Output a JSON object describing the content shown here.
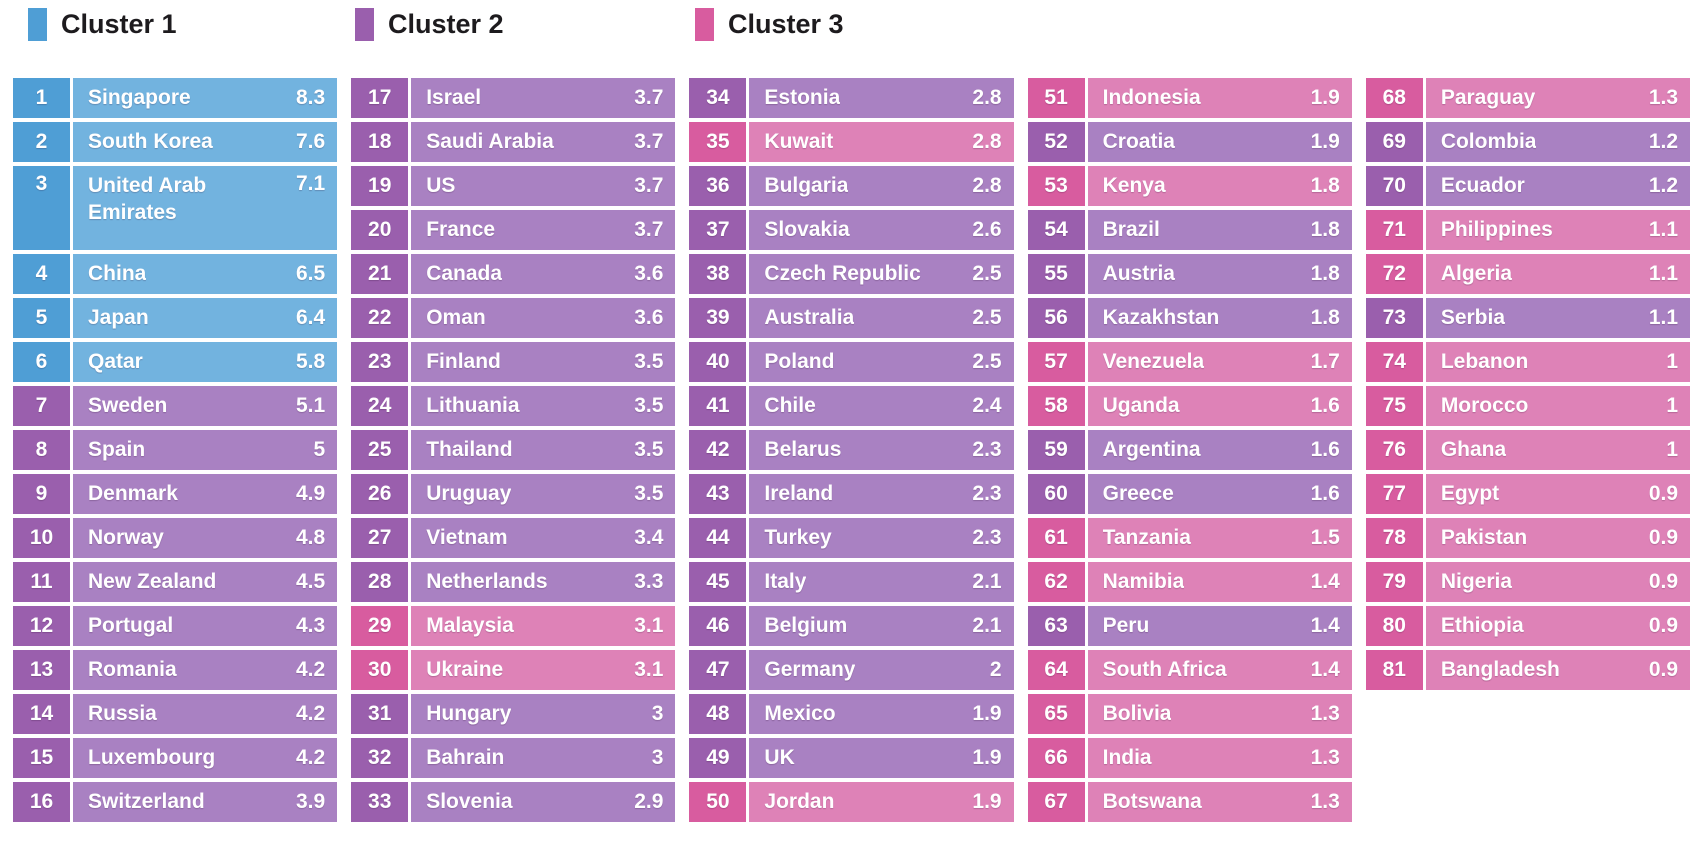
{
  "colors": {
    "cluster1_dark": "#4F9ED5",
    "cluster1_light": "#72B3DF",
    "cluster2_dark": "#9A5FAD",
    "cluster2_light": "#A981C2",
    "cluster3_dark": "#D85C9F",
    "cluster3_light": "#DE82B7",
    "row_text": "#FFFFFF",
    "legend_text": "#1D1B1E"
  },
  "legend": [
    {
      "label": "Cluster 1",
      "cluster": 1
    },
    {
      "label": "Cluster 2",
      "cluster": 2
    },
    {
      "label": "Cluster 3",
      "cluster": 3
    }
  ],
  "chart_data": {
    "type": "table",
    "legend": [
      "Cluster 1",
      "Cluster 2",
      "Cluster 3"
    ],
    "column_breaks": [
      16,
      33,
      50,
      67,
      81
    ],
    "rows": [
      {
        "rank": 1,
        "country": "Singapore",
        "value": 8.3,
        "cluster": 1
      },
      {
        "rank": 2,
        "country": "South Korea",
        "value": 7.6,
        "cluster": 1
      },
      {
        "rank": 3,
        "country": "United Arab Emirates",
        "value": 7.1,
        "cluster": 1
      },
      {
        "rank": 4,
        "country": "China",
        "value": 6.5,
        "cluster": 1
      },
      {
        "rank": 5,
        "country": "Japan",
        "value": 6.4,
        "cluster": 1
      },
      {
        "rank": 6,
        "country": "Qatar",
        "value": 5.8,
        "cluster": 1
      },
      {
        "rank": 7,
        "country": "Sweden",
        "value": 5.1,
        "cluster": 2
      },
      {
        "rank": 8,
        "country": "Spain",
        "value": 5,
        "cluster": 2
      },
      {
        "rank": 9,
        "country": "Denmark",
        "value": 4.9,
        "cluster": 2
      },
      {
        "rank": 10,
        "country": "Norway",
        "value": 4.8,
        "cluster": 2
      },
      {
        "rank": 11,
        "country": "New Zealand",
        "value": 4.5,
        "cluster": 2
      },
      {
        "rank": 12,
        "country": "Portugal",
        "value": 4.3,
        "cluster": 2
      },
      {
        "rank": 13,
        "country": "Romania",
        "value": 4.2,
        "cluster": 2
      },
      {
        "rank": 14,
        "country": "Russia",
        "value": 4.2,
        "cluster": 2
      },
      {
        "rank": 15,
        "country": "Luxembourg",
        "value": 4.2,
        "cluster": 2
      },
      {
        "rank": 16,
        "country": "Switzerland",
        "value": 3.9,
        "cluster": 2
      },
      {
        "rank": 17,
        "country": "Israel",
        "value": 3.7,
        "cluster": 2
      },
      {
        "rank": 18,
        "country": "Saudi Arabia",
        "value": 3.7,
        "cluster": 2
      },
      {
        "rank": 19,
        "country": "US",
        "value": 3.7,
        "cluster": 2
      },
      {
        "rank": 20,
        "country": "France",
        "value": 3.7,
        "cluster": 2
      },
      {
        "rank": 21,
        "country": "Canada",
        "value": 3.6,
        "cluster": 2
      },
      {
        "rank": 22,
        "country": "Oman",
        "value": 3.6,
        "cluster": 2
      },
      {
        "rank": 23,
        "country": "Finland",
        "value": 3.5,
        "cluster": 2
      },
      {
        "rank": 24,
        "country": "Lithuania",
        "value": 3.5,
        "cluster": 2
      },
      {
        "rank": 25,
        "country": "Thailand",
        "value": 3.5,
        "cluster": 2
      },
      {
        "rank": 26,
        "country": "Uruguay",
        "value": 3.5,
        "cluster": 2
      },
      {
        "rank": 27,
        "country": "Vietnam",
        "value": 3.4,
        "cluster": 2
      },
      {
        "rank": 28,
        "country": "Netherlands",
        "value": 3.3,
        "cluster": 2
      },
      {
        "rank": 29,
        "country": "Malaysia",
        "value": 3.1,
        "cluster": 3
      },
      {
        "rank": 30,
        "country": "Ukraine",
        "value": 3.1,
        "cluster": 3
      },
      {
        "rank": 31,
        "country": "Hungary",
        "value": 3,
        "cluster": 2
      },
      {
        "rank": 32,
        "country": "Bahrain",
        "value": 3,
        "cluster": 2
      },
      {
        "rank": 33,
        "country": "Slovenia",
        "value": 2.9,
        "cluster": 2
      },
      {
        "rank": 34,
        "country": "Estonia",
        "value": 2.8,
        "cluster": 2
      },
      {
        "rank": 35,
        "country": "Kuwait",
        "value": 2.8,
        "cluster": 3
      },
      {
        "rank": 36,
        "country": "Bulgaria",
        "value": 2.8,
        "cluster": 2
      },
      {
        "rank": 37,
        "country": "Slovakia",
        "value": 2.6,
        "cluster": 2
      },
      {
        "rank": 38,
        "country": "Czech Republic",
        "value": 2.5,
        "cluster": 2
      },
      {
        "rank": 39,
        "country": "Australia",
        "value": 2.5,
        "cluster": 2
      },
      {
        "rank": 40,
        "country": "Poland",
        "value": 2.5,
        "cluster": 2
      },
      {
        "rank": 41,
        "country": "Chile",
        "value": 2.4,
        "cluster": 2
      },
      {
        "rank": 42,
        "country": "Belarus",
        "value": 2.3,
        "cluster": 2
      },
      {
        "rank": 43,
        "country": "Ireland",
        "value": 2.3,
        "cluster": 2
      },
      {
        "rank": 44,
        "country": "Turkey",
        "value": 2.3,
        "cluster": 2
      },
      {
        "rank": 45,
        "country": "Italy",
        "value": 2.1,
        "cluster": 2
      },
      {
        "rank": 46,
        "country": "Belgium",
        "value": 2.1,
        "cluster": 2
      },
      {
        "rank": 47,
        "country": "Germany",
        "value": 2,
        "cluster": 2
      },
      {
        "rank": 48,
        "country": "Mexico",
        "value": 1.9,
        "cluster": 2
      },
      {
        "rank": 49,
        "country": "UK",
        "value": 1.9,
        "cluster": 2
      },
      {
        "rank": 50,
        "country": "Jordan",
        "value": 1.9,
        "cluster": 3
      },
      {
        "rank": 51,
        "country": "Indonesia",
        "value": 1.9,
        "cluster": 3
      },
      {
        "rank": 52,
        "country": "Croatia",
        "value": 1.9,
        "cluster": 2
      },
      {
        "rank": 53,
        "country": "Kenya",
        "value": 1.8,
        "cluster": 3
      },
      {
        "rank": 54,
        "country": "Brazil",
        "value": 1.8,
        "cluster": 2
      },
      {
        "rank": 55,
        "country": "Austria",
        "value": 1.8,
        "cluster": 2
      },
      {
        "rank": 56,
        "country": "Kazakhstan",
        "value": 1.8,
        "cluster": 2
      },
      {
        "rank": 57,
        "country": "Venezuela",
        "value": 1.7,
        "cluster": 3
      },
      {
        "rank": 58,
        "country": "Uganda",
        "value": 1.6,
        "cluster": 3
      },
      {
        "rank": 59,
        "country": "Argentina",
        "value": 1.6,
        "cluster": 2
      },
      {
        "rank": 60,
        "country": "Greece",
        "value": 1.6,
        "cluster": 2
      },
      {
        "rank": 61,
        "country": "Tanzania",
        "value": 1.5,
        "cluster": 3
      },
      {
        "rank": 62,
        "country": "Namibia",
        "value": 1.4,
        "cluster": 3
      },
      {
        "rank": 63,
        "country": "Peru",
        "value": 1.4,
        "cluster": 2
      },
      {
        "rank": 64,
        "country": "South Africa",
        "value": 1.4,
        "cluster": 3
      },
      {
        "rank": 65,
        "country": "Bolivia",
        "value": 1.3,
        "cluster": 3
      },
      {
        "rank": 66,
        "country": "India",
        "value": 1.3,
        "cluster": 3
      },
      {
        "rank": 67,
        "country": "Botswana",
        "value": 1.3,
        "cluster": 3
      },
      {
        "rank": 68,
        "country": "Paraguay",
        "value": 1.3,
        "cluster": 3
      },
      {
        "rank": 69,
        "country": "Colombia",
        "value": 1.2,
        "cluster": 2
      },
      {
        "rank": 70,
        "country": "Ecuador",
        "value": 1.2,
        "cluster": 2
      },
      {
        "rank": 71,
        "country": "Philippines",
        "value": 1.1,
        "cluster": 3
      },
      {
        "rank": 72,
        "country": "Algeria",
        "value": 1.1,
        "cluster": 3
      },
      {
        "rank": 73,
        "country": "Serbia",
        "value": 1.1,
        "cluster": 2
      },
      {
        "rank": 74,
        "country": "Lebanon",
        "value": 1,
        "cluster": 3
      },
      {
        "rank": 75,
        "country": "Morocco",
        "value": 1,
        "cluster": 3
      },
      {
        "rank": 76,
        "country": "Ghana",
        "value": 1,
        "cluster": 3
      },
      {
        "rank": 77,
        "country": "Egypt",
        "value": 0.9,
        "cluster": 3
      },
      {
        "rank": 78,
        "country": "Pakistan",
        "value": 0.9,
        "cluster": 3
      },
      {
        "rank": 79,
        "country": "Nigeria",
        "value": 0.9,
        "cluster": 3
      },
      {
        "rank": 80,
        "country": "Ethiopia",
        "value": 0.9,
        "cluster": 3
      },
      {
        "rank": 81,
        "country": "Bangladesh",
        "value": 0.9,
        "cluster": 3
      }
    ]
  }
}
